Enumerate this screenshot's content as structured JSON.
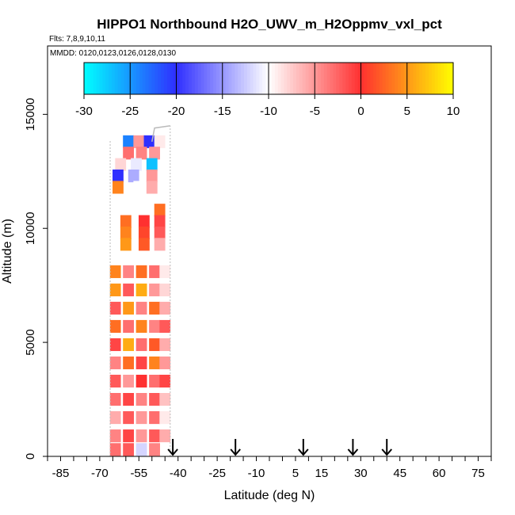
{
  "chart_data": {
    "type": "heatmap",
    "title": "HIPPO1 Northbound H2O_UWV_m_H2Oppmv_vxl_pct",
    "subtitle": "Flts: 7,8,9,10,11",
    "annotation": "MMDD: 0120,0123,0126,0128,0130",
    "xlabel": "Latitude (deg N)",
    "ylabel": "Altitude (m)",
    "xlim": [
      -90,
      80
    ],
    "ylim": [
      0,
      18000
    ],
    "x_ticks": [
      -85,
      -70,
      -55,
      -40,
      -25,
      -10,
      5,
      15,
      30,
      45,
      60,
      75
    ],
    "y_ticks": [
      0,
      5000,
      10000,
      15000
    ],
    "colorbar": {
      "ticks": [
        -30,
        -25,
        -20,
        -15,
        -10,
        -5,
        0,
        5,
        10
      ],
      "range": [
        -30,
        10
      ],
      "colors": [
        "#00ffff",
        "#2f2fff",
        "#ffffff",
        "#ff3030",
        "#ffff00"
      ]
    },
    "flight_arrows_lat": [
      -42,
      -18,
      8,
      27,
      40
    ],
    "cells": [
      {
        "lat": -59,
        "alt": 13800,
        "v": -24
      },
      {
        "lat": -55,
        "alt": 13800,
        "v": -5
      },
      {
        "lat": -51,
        "alt": 13800,
        "v": -20
      },
      {
        "lat": -47,
        "alt": 13800,
        "v": -9
      },
      {
        "lat": -59,
        "alt": 13300,
        "v": -3
      },
      {
        "lat": -54,
        "alt": 13300,
        "v": -4
      },
      {
        "lat": -49,
        "alt": 13300,
        "v": -5
      },
      {
        "lat": -62,
        "alt": 12800,
        "v": -8
      },
      {
        "lat": -56,
        "alt": 12800,
        "v": -11
      },
      {
        "lat": -50,
        "alt": 12800,
        "v": -27
      },
      {
        "lat": -63,
        "alt": 12300,
        "v": -20
      },
      {
        "lat": -57,
        "alt": 12300,
        "v": -14
      },
      {
        "lat": -50,
        "alt": 12300,
        "v": -5
      },
      {
        "lat": -63,
        "alt": 11800,
        "v": 4
      },
      {
        "lat": -55,
        "alt": 11800,
        "v": -10
      },
      {
        "lat": -50,
        "alt": 11800,
        "v": -6
      },
      {
        "lat": -53,
        "alt": 10800,
        "v": -10
      },
      {
        "lat": -47,
        "alt": 10800,
        "v": 3
      },
      {
        "lat": -60,
        "alt": 10300,
        "v": 3
      },
      {
        "lat": -53,
        "alt": 10300,
        "v": 0
      },
      {
        "lat": -47,
        "alt": 10300,
        "v": -1
      },
      {
        "lat": -60,
        "alt": 9800,
        "v": 4
      },
      {
        "lat": -53,
        "alt": 9800,
        "v": 1
      },
      {
        "lat": -47,
        "alt": 9800,
        "v": -2
      },
      {
        "lat": -60,
        "alt": 9300,
        "v": 5
      },
      {
        "lat": -53,
        "alt": 9300,
        "v": 2
      },
      {
        "lat": -47,
        "alt": 9300,
        "v": -6
      },
      {
        "lat": -64,
        "alt": 8100,
        "v": 4
      },
      {
        "lat": -59,
        "alt": 8100,
        "v": -4
      },
      {
        "lat": -54,
        "alt": 8100,
        "v": 3
      },
      {
        "lat": -49,
        "alt": 8100,
        "v": -3
      },
      {
        "lat": -45,
        "alt": 8100,
        "v": -9
      },
      {
        "lat": -64,
        "alt": 7300,
        "v": 5
      },
      {
        "lat": -59,
        "alt": 7300,
        "v": -2
      },
      {
        "lat": -54,
        "alt": 7300,
        "v": 6
      },
      {
        "lat": -49,
        "alt": 7300,
        "v": -5
      },
      {
        "lat": -45,
        "alt": 7300,
        "v": -8
      },
      {
        "lat": -64,
        "alt": 6500,
        "v": -2
      },
      {
        "lat": -59,
        "alt": 6500,
        "v": 5
      },
      {
        "lat": -54,
        "alt": 6500,
        "v": -4
      },
      {
        "lat": -49,
        "alt": 6500,
        "v": 3
      },
      {
        "lat": -45,
        "alt": 6500,
        "v": -6
      },
      {
        "lat": -64,
        "alt": 5700,
        "v": 3
      },
      {
        "lat": -59,
        "alt": 5700,
        "v": -3
      },
      {
        "lat": -54,
        "alt": 5700,
        "v": 4
      },
      {
        "lat": -49,
        "alt": 5700,
        "v": -4
      },
      {
        "lat": -45,
        "alt": 5700,
        "v": -2
      },
      {
        "lat": -64,
        "alt": 4900,
        "v": -1
      },
      {
        "lat": -59,
        "alt": 4900,
        "v": 6
      },
      {
        "lat": -54,
        "alt": 4900,
        "v": -3
      },
      {
        "lat": -49,
        "alt": 4900,
        "v": 2
      },
      {
        "lat": -45,
        "alt": 4900,
        "v": -6
      },
      {
        "lat": -64,
        "alt": 4100,
        "v": -4
      },
      {
        "lat": -59,
        "alt": 4100,
        "v": 3
      },
      {
        "lat": -54,
        "alt": 4100,
        "v": -1
      },
      {
        "lat": -49,
        "alt": 4100,
        "v": 4
      },
      {
        "lat": -45,
        "alt": 4100,
        "v": -5
      },
      {
        "lat": -64,
        "alt": 3300,
        "v": -2
      },
      {
        "lat": -59,
        "alt": 3300,
        "v": -5
      },
      {
        "lat": -54,
        "alt": 3300,
        "v": 0
      },
      {
        "lat": -49,
        "alt": 3300,
        "v": -3
      },
      {
        "lat": -45,
        "alt": 3300,
        "v": -1
      },
      {
        "lat": -64,
        "alt": 2500,
        "v": -3
      },
      {
        "lat": -59,
        "alt": 2500,
        "v": -1
      },
      {
        "lat": -54,
        "alt": 2500,
        "v": -4
      },
      {
        "lat": -49,
        "alt": 2500,
        "v": -2
      },
      {
        "lat": -45,
        "alt": 2500,
        "v": -7
      },
      {
        "lat": -64,
        "alt": 1700,
        "v": -6
      },
      {
        "lat": -59,
        "alt": 1700,
        "v": -2
      },
      {
        "lat": -54,
        "alt": 1700,
        "v": -5
      },
      {
        "lat": -49,
        "alt": 1700,
        "v": -3
      },
      {
        "lat": -45,
        "alt": 1700,
        "v": -9
      },
      {
        "lat": -64,
        "alt": 900,
        "v": -4
      },
      {
        "lat": -59,
        "alt": 900,
        "v": -1
      },
      {
        "lat": -54,
        "alt": 900,
        "v": -5
      },
      {
        "lat": -49,
        "alt": 900,
        "v": -2
      },
      {
        "lat": -45,
        "alt": 900,
        "v": -6
      },
      {
        "lat": -64,
        "alt": 300,
        "v": -3
      },
      {
        "lat": -59,
        "alt": 300,
        "v": -2
      },
      {
        "lat": -54,
        "alt": 300,
        "v": -12
      },
      {
        "lat": -49,
        "alt": 300,
        "v": -4
      }
    ]
  }
}
